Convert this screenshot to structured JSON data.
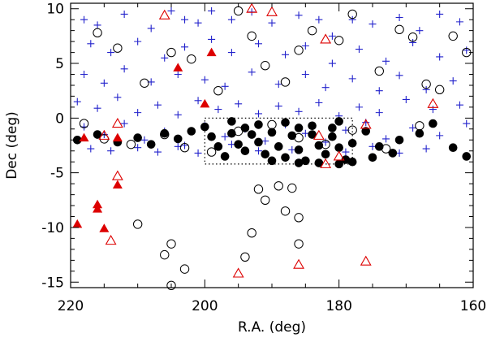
{
  "chart_data": {
    "type": "scatter",
    "xlabel": "R.A. (deg)",
    "ylabel": "Dec (deg)",
    "xlim": [
      220,
      160
    ],
    "ylim": [
      -15.5,
      10.5
    ],
    "x_ticks": [
      220,
      200,
      180,
      160
    ],
    "y_ticks": [
      10,
      5,
      0,
      -5,
      -10,
      -15
    ],
    "grid": false,
    "region_box": {
      "x": [
        200,
        178
      ],
      "y": [
        -4.2,
        0
      ]
    },
    "colors": {
      "plus": "#2222cc",
      "triangle": "#dd0000",
      "marker": "#000000"
    },
    "series": [
      {
        "marker": "plus",
        "points": [
          [
            218,
            9
          ],
          [
            216,
            8.5
          ],
          [
            212,
            9.5
          ],
          [
            208,
            8.2
          ],
          [
            205,
            9.8
          ],
          [
            203,
            9
          ],
          [
            201,
            8.7
          ],
          [
            199,
            9.8
          ],
          [
            196,
            9
          ],
          [
            193,
            9.7
          ],
          [
            190,
            8.7
          ],
          [
            186,
            9.4
          ],
          [
            183,
            9
          ],
          [
            181,
            7.5
          ],
          [
            178,
            9
          ],
          [
            175,
            8.6
          ],
          [
            171,
            9.2
          ],
          [
            168,
            8
          ],
          [
            165,
            9.5
          ],
          [
            162,
            8.8
          ],
          [
            217,
            6.8
          ],
          [
            214,
            6
          ],
          [
            210,
            7
          ],
          [
            206,
            5.5
          ],
          [
            203,
            6.5
          ],
          [
            199,
            7.2
          ],
          [
            196,
            6
          ],
          [
            192,
            6.8
          ],
          [
            188,
            5.8
          ],
          [
            185,
            6.6
          ],
          [
            181,
            5
          ],
          [
            177,
            6.3
          ],
          [
            173,
            5.2
          ],
          [
            169,
            6.9
          ],
          [
            165,
            5.6
          ],
          [
            161,
            6.2
          ],
          [
            218,
            4
          ],
          [
            215,
            3.2
          ],
          [
            212,
            4.5
          ],
          [
            208,
            3.3
          ],
          [
            204,
            4
          ],
          [
            200,
            3.5
          ],
          [
            197,
            2.9
          ],
          [
            193,
            4.2
          ],
          [
            189,
            3.1
          ],
          [
            185,
            4
          ],
          [
            182,
            2.8
          ],
          [
            178,
            3.6
          ],
          [
            174,
            2.5
          ],
          [
            171,
            3.9
          ],
          [
            167,
            2.6
          ],
          [
            163,
            3.4
          ],
          [
            219,
            1.5
          ],
          [
            216,
            0.9
          ],
          [
            213,
            1.9
          ],
          [
            210,
            0.5
          ],
          [
            207,
            1.2
          ],
          [
            204,
            0.3
          ],
          [
            201,
            1.6
          ],
          [
            198,
            0.8
          ],
          [
            195,
            1.3
          ],
          [
            192,
            0.4
          ],
          [
            189,
            1.1
          ],
          [
            186,
            0.6
          ],
          [
            183,
            1.4
          ],
          [
            180,
            0.2
          ],
          [
            177,
            1
          ],
          [
            174,
            0.5
          ],
          [
            170,
            1.7
          ],
          [
            166,
            0.8
          ],
          [
            162,
            1.2
          ],
          [
            218,
            -0.8
          ],
          [
            215,
            -1.5
          ],
          [
            212,
            -0.5
          ],
          [
            209,
            -2
          ],
          [
            206,
            -1.2
          ],
          [
            203,
            -2.5
          ],
          [
            200,
            -0.7
          ],
          [
            197,
            -1.7
          ],
          [
            194,
            -1
          ],
          [
            191,
            -2.1
          ],
          [
            188,
            -0.6
          ],
          [
            185,
            -1.4
          ],
          [
            182,
            -2.2
          ],
          [
            179,
            -1.1
          ],
          [
            176,
            -0.4
          ],
          [
            173,
            -1.9
          ],
          [
            169,
            -0.9
          ],
          [
            165,
            -1.6
          ],
          [
            161,
            -0.5
          ],
          [
            217,
            -2.8
          ],
          [
            214,
            -3
          ],
          [
            210,
            -2.7
          ],
          [
            207,
            -3.1
          ],
          [
            204,
            -2.6
          ],
          [
            201,
            -3.2
          ],
          [
            196,
            -2.4
          ],
          [
            192,
            -3
          ],
          [
            187,
            -2.9
          ],
          [
            183,
            -2.5
          ],
          [
            179,
            -3.1
          ],
          [
            175,
            -2.6
          ],
          [
            171,
            -3.2
          ],
          [
            167,
            -2.8
          ]
        ]
      },
      {
        "marker": "circle-open",
        "points": [
          [
            216,
            7.8
          ],
          [
            213,
            6.4
          ],
          [
            209,
            3.2
          ],
          [
            205,
            6
          ],
          [
            202,
            5.4
          ],
          [
            198,
            2.5
          ],
          [
            195,
            9.8
          ],
          [
            193,
            7.5
          ],
          [
            191,
            4.8
          ],
          [
            188,
            3.3
          ],
          [
            186,
            6.2
          ],
          [
            184,
            8
          ],
          [
            180,
            7.1
          ],
          [
            178,
            9.5
          ],
          [
            174,
            4.3
          ],
          [
            171,
            8.1
          ],
          [
            169,
            7.4
          ],
          [
            167,
            3.1
          ],
          [
            165,
            2.6
          ],
          [
            163,
            7.5
          ],
          [
            161,
            6
          ],
          [
            218,
            -0.5
          ],
          [
            215,
            -1.9
          ],
          [
            211,
            -2.4
          ],
          [
            206,
            -1.5
          ],
          [
            203,
            -2.7
          ],
          [
            199,
            -3.1
          ],
          [
            195,
            -1.2
          ],
          [
            190,
            -0.6
          ],
          [
            186,
            -1.8
          ],
          [
            182,
            -2.4
          ],
          [
            178,
            -1.1
          ],
          [
            173,
            -2.8
          ],
          [
            168,
            -0.7
          ],
          [
            192,
            -6.5
          ],
          [
            191,
            -7.5
          ],
          [
            189,
            -6.2
          ],
          [
            188,
            -8.5
          ],
          [
            187,
            -6.4
          ],
          [
            186,
            -9.1
          ],
          [
            193,
            -10.5
          ],
          [
            194,
            -12.7
          ],
          [
            205,
            -11.5
          ],
          [
            206,
            -12.5
          ],
          [
            203,
            -13.8
          ],
          [
            210,
            -9.7
          ],
          [
            205,
            -15.3
          ],
          [
            186,
            -11.5
          ]
        ]
      },
      {
        "marker": "circle-filled",
        "points": [
          [
            219,
            -2
          ],
          [
            216,
            -1.5
          ],
          [
            213,
            -2.2
          ],
          [
            210,
            -1.8
          ],
          [
            208,
            -2.4
          ],
          [
            206,
            -1.4
          ],
          [
            204,
            -1.9
          ],
          [
            202,
            -1.2
          ],
          [
            200,
            -0.8
          ],
          [
            199,
            -1.7
          ],
          [
            198,
            -2.6
          ],
          [
            196,
            -1.4
          ],
          [
            195,
            -2.4
          ],
          [
            194,
            -3
          ],
          [
            193,
            -1.5
          ],
          [
            192,
            -2.2
          ],
          [
            191,
            -3.3
          ],
          [
            190,
            -1.3
          ],
          [
            189,
            -2.6
          ],
          [
            188,
            -3.6
          ],
          [
            187,
            -1.6
          ],
          [
            186,
            -2.9
          ],
          [
            185,
            -3.9
          ],
          [
            184,
            -1.5
          ],
          [
            183,
            -2.5
          ],
          [
            182,
            -3.3
          ],
          [
            181,
            -1.7
          ],
          [
            180,
            -2.7
          ],
          [
            179,
            -3.8
          ],
          [
            178,
            -2.3
          ],
          [
            196,
            -0.3
          ],
          [
            192,
            -0.6
          ],
          [
            188,
            -0.4
          ],
          [
            184,
            -0.7
          ],
          [
            180,
            -0.3
          ],
          [
            178,
            -4
          ],
          [
            180,
            -4.2
          ],
          [
            183,
            -4.1
          ],
          [
            186,
            -4.1
          ],
          [
            190,
            -3.9
          ],
          [
            176,
            -1.2
          ],
          [
            174,
            -2.6
          ],
          [
            171,
            -2
          ],
          [
            168,
            -1.4
          ],
          [
            166,
            -0.5
          ],
          [
            163,
            -2.7
          ],
          [
            161,
            -3.5
          ],
          [
            172,
            -3.2
          ],
          [
            175,
            -3.6
          ],
          [
            197,
            -3.5
          ],
          [
            194,
            -0.9
          ],
          [
            186,
            -0.9
          ],
          [
            181,
            -0.9
          ]
        ]
      },
      {
        "marker": "triangle-open",
        "points": [
          [
            206,
            9.4
          ],
          [
            193,
            10
          ],
          [
            190,
            9.7
          ],
          [
            182,
            7.2
          ],
          [
            166,
            1.3
          ],
          [
            176,
            -0.6
          ],
          [
            180,
            -3.5
          ],
          [
            182,
            -4.2
          ],
          [
            183,
            -1.6
          ],
          [
            213,
            -0.5
          ],
          [
            215,
            -1.6
          ],
          [
            213,
            -5.3
          ],
          [
            214,
            -11.2
          ],
          [
            195,
            -14.2
          ],
          [
            186,
            -13.4
          ],
          [
            176,
            -13.1
          ]
        ]
      },
      {
        "marker": "triangle-filled",
        "points": [
          [
            199,
            6
          ],
          [
            204,
            4.6
          ],
          [
            200,
            1.3
          ],
          [
            218,
            -1.8
          ],
          [
            213,
            -1.8
          ],
          [
            213,
            -6.1
          ],
          [
            216,
            -7.9
          ],
          [
            216,
            -8.3
          ],
          [
            219,
            -9.7
          ],
          [
            215,
            -10.1
          ]
        ]
      }
    ]
  }
}
